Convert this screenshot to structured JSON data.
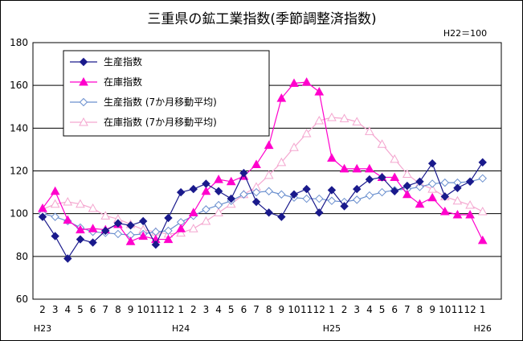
{
  "chart_data": {
    "type": "line",
    "title": "三重県の鉱工業指数(季節調整済指数)",
    "note": "H22＝100",
    "ylim": [
      60,
      180
    ],
    "yticks": [
      60,
      80,
      100,
      120,
      140,
      160,
      180
    ],
    "x_month_labels": [
      "2",
      "3",
      "4",
      "5",
      "6",
      "7",
      "8",
      "9",
      "10",
      "11",
      "12",
      "1",
      "2",
      "3",
      "4",
      "5",
      "6",
      "7",
      "8",
      "9",
      "10",
      "11",
      "12",
      "1",
      "2",
      "3",
      "4",
      "5",
      "6",
      "7",
      "8",
      "9",
      "10",
      "11",
      "12",
      "1"
    ],
    "era_labels": [
      {
        "index": 0,
        "label": "H23"
      },
      {
        "index": 11,
        "label": "H24"
      },
      {
        "index": 23,
        "label": "H25"
      },
      {
        "index": 35,
        "label": "H26"
      }
    ],
    "series": [
      {
        "name": "生産指数",
        "color": "#1a1a8c",
        "marker": "diamond-filled",
        "values": [
          98.5,
          89.5,
          79,
          88,
          86.5,
          92,
          95.5,
          94.5,
          96.5,
          85.5,
          98,
          110,
          111.5,
          114,
          110.5,
          107,
          119,
          105.5,
          100.5,
          98.5,
          109,
          111.5,
          100.5,
          111,
          103.5,
          111.5,
          116,
          117,
          110.5,
          113,
          115,
          123.5,
          108,
          112,
          115,
          124
        ]
      },
      {
        "name": "在庫指数",
        "color": "#ff00cc",
        "marker": "triangle-filled",
        "values": [
          102.5,
          110.5,
          97,
          92.5,
          93,
          92.5,
          95,
          87,
          89.5,
          88,
          88,
          93,
          100.5,
          110.5,
          116,
          115,
          117.5,
          123,
          132,
          154,
          161,
          161.5,
          157,
          126,
          121,
          121,
          121,
          117,
          117,
          109,
          104.5,
          107.5,
          101,
          99.5,
          99.5,
          87.5
        ]
      },
      {
        "name": "生産指数 (7か月移動平均)",
        "color": "#6a8fce",
        "marker": "diamond-open",
        "values": [
          100,
          98.5,
          96.5,
          93.5,
          91.5,
          91,
          90.5,
          90,
          90.5,
          91.5,
          92,
          96,
          99,
          102,
          104,
          106,
          109,
          110,
          110.5,
          109,
          107.5,
          107,
          107,
          106,
          105.5,
          106.5,
          108.5,
          110,
          111,
          111.5,
          112.5,
          114,
          114.5,
          114.5,
          115,
          116.5
        ]
      },
      {
        "name": "在庫指数 (7か月移動平均)",
        "color": "#f4a6cf",
        "marker": "triangle-open",
        "values": [
          102,
          104.5,
          105.5,
          104.5,
          102.5,
          99,
          97.5,
          95,
          92.5,
          91.5,
          90.5,
          91,
          93,
          96.5,
          100.5,
          104.5,
          109,
          112.5,
          118,
          124,
          131,
          137.5,
          143.5,
          145,
          144.5,
          143,
          138.5,
          132.5,
          125.5,
          118.5,
          114,
          111.5,
          108,
          106,
          104,
          101
        ]
      }
    ],
    "legend": {
      "placement": "top-left"
    }
  }
}
